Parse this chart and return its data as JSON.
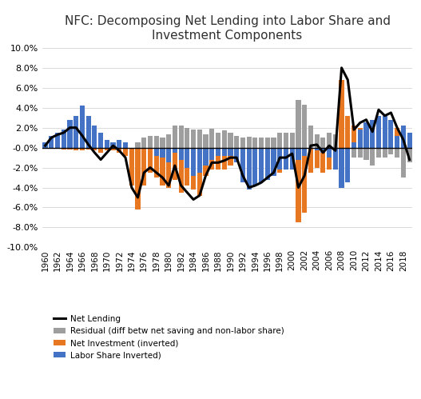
{
  "years": [
    1960,
    1961,
    1962,
    1963,
    1964,
    1965,
    1966,
    1967,
    1968,
    1969,
    1970,
    1971,
    1972,
    1973,
    1974,
    1975,
    1976,
    1977,
    1978,
    1979,
    1980,
    1981,
    1982,
    1983,
    1984,
    1985,
    1986,
    1987,
    1988,
    1989,
    1990,
    1991,
    1992,
    1993,
    1994,
    1995,
    1996,
    1997,
    1998,
    1999,
    2000,
    2001,
    2002,
    2003,
    2004,
    2005,
    2006,
    2007,
    2008,
    2009,
    2010,
    2011,
    2012,
    2013,
    2014,
    2015,
    2016,
    2017,
    2018,
    2019
  ],
  "residual": [
    0.003,
    0.001,
    0.001,
    0.001,
    0.0,
    0.0,
    0.0,
    0.0,
    0.0,
    0.0,
    0.0,
    0.0,
    0.0,
    0.0,
    -0.005,
    0.005,
    0.01,
    0.012,
    0.012,
    0.01,
    0.013,
    0.022,
    0.022,
    0.02,
    0.018,
    0.018,
    0.013,
    0.019,
    0.015,
    0.017,
    0.015,
    0.012,
    0.01,
    0.011,
    0.01,
    0.01,
    0.01,
    0.01,
    0.015,
    0.015,
    0.015,
    0.048,
    0.043,
    0.022,
    0.013,
    0.01,
    0.015,
    0.013,
    0.01,
    -0.008,
    -0.01,
    -0.01,
    -0.012,
    -0.018,
    -0.01,
    -0.01,
    -0.007,
    -0.01,
    -0.03,
    -0.015
  ],
  "net_investment": [
    0.0,
    -0.001,
    -0.001,
    -0.002,
    -0.002,
    -0.003,
    -0.003,
    -0.002,
    -0.003,
    -0.005,
    -0.003,
    -0.003,
    -0.005,
    -0.008,
    -0.038,
    -0.062,
    -0.038,
    -0.025,
    -0.03,
    -0.038,
    -0.04,
    -0.032,
    -0.045,
    -0.038,
    -0.042,
    -0.048,
    -0.028,
    -0.022,
    -0.022,
    -0.022,
    -0.018,
    -0.012,
    -0.012,
    -0.015,
    -0.022,
    -0.022,
    -0.02,
    -0.025,
    -0.025,
    -0.022,
    -0.022,
    -0.075,
    -0.065,
    -0.025,
    -0.02,
    -0.025,
    -0.022,
    -0.02,
    0.068,
    0.032,
    0.022,
    0.02,
    0.018,
    0.005,
    0.02,
    0.018,
    0.015,
    0.02,
    0.018,
    0.005
  ],
  "labor_share": [
    0.005,
    0.012,
    0.015,
    0.018,
    0.028,
    0.032,
    0.042,
    0.032,
    0.022,
    0.015,
    0.008,
    0.005,
    0.008,
    0.005,
    0.0,
    0.0,
    0.0,
    0.0,
    -0.008,
    -0.01,
    -0.015,
    -0.005,
    -0.012,
    -0.02,
    -0.028,
    -0.025,
    -0.018,
    -0.012,
    -0.008,
    -0.008,
    -0.008,
    -0.015,
    -0.035,
    -0.042,
    -0.038,
    -0.035,
    -0.032,
    -0.028,
    -0.022,
    -0.022,
    -0.022,
    -0.012,
    -0.008,
    0.0,
    -0.003,
    -0.005,
    -0.01,
    -0.022,
    -0.04,
    -0.035,
    0.005,
    0.018,
    0.025,
    0.028,
    0.032,
    0.032,
    0.028,
    0.012,
    0.022,
    0.015
  ],
  "net_lending": [
    0.002,
    0.01,
    0.013,
    0.015,
    0.02,
    0.02,
    0.012,
    0.003,
    -0.005,
    -0.012,
    -0.005,
    0.002,
    -0.003,
    -0.01,
    -0.04,
    -0.05,
    -0.025,
    -0.02,
    -0.025,
    -0.03,
    -0.038,
    -0.018,
    -0.038,
    -0.045,
    -0.052,
    -0.048,
    -0.028,
    -0.015,
    -0.015,
    -0.013,
    -0.01,
    -0.01,
    -0.028,
    -0.04,
    -0.038,
    -0.035,
    -0.03,
    -0.025,
    -0.01,
    -0.01,
    -0.006,
    -0.04,
    -0.028,
    0.002,
    0.003,
    -0.005,
    0.002,
    -0.003,
    0.08,
    0.068,
    0.018,
    0.025,
    0.028,
    0.016,
    0.038,
    0.032,
    0.035,
    0.02,
    0.008,
    -0.012
  ],
  "title": "NFC: Decomposing Net Lending into Labor Share and\nInvestment Components",
  "residual_color": "#9E9E9E",
  "investment_color": "#E87722",
  "labor_color": "#4472C4",
  "line_color": "#000000",
  "ylim": [
    -0.1,
    0.1
  ],
  "legend_labels": [
    "Residual (diff betw net saving and non-labor share)",
    "Net Investment (inverted)",
    "Labor Share Inverted)",
    "Net Lending"
  ]
}
